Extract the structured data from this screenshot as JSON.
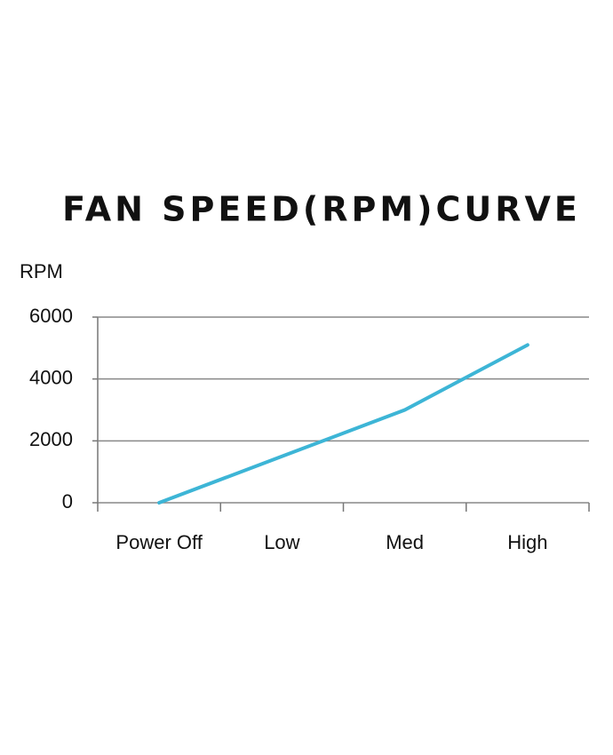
{
  "chart_data": {
    "type": "line",
    "title": "FAN SPEED(RPM)CURVE",
    "y_label": "RPM",
    "categories": [
      "Power Off",
      "Low",
      "Med",
      "High"
    ],
    "values": [
      0,
      1500,
      3000,
      5100
    ],
    "color": "#3db5d6",
    "ylim": [
      0,
      6000
    ],
    "yticks": [
      0,
      2000,
      4000,
      6000
    ],
    "grid": true
  }
}
